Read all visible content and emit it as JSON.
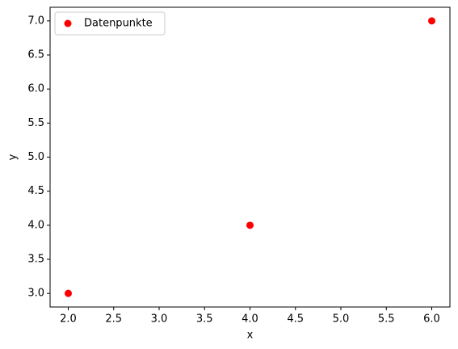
{
  "chart_data": {
    "type": "scatter",
    "x_label": "x",
    "y_label": "y",
    "series": [
      {
        "name": "Datenpunkte",
        "color": "#ff0000",
        "x": [
          2,
          4,
          6
        ],
        "values": [
          3,
          4,
          7
        ]
      }
    ],
    "xlim": [
      1.8,
      6.2
    ],
    "xticks": [
      {
        "value": 2,
        "label": "2.0"
      },
      {
        "value": 2.5,
        "label": "2.5"
      },
      {
        "value": 3,
        "label": "3.0"
      },
      {
        "value": 3.5,
        "label": "3.5"
      },
      {
        "value": 4,
        "label": "4.0"
      },
      {
        "value": 4.5,
        "label": "4.5"
      },
      {
        "value": 5,
        "label": "5.0"
      },
      {
        "value": 5.5,
        "label": "5.5"
      },
      {
        "value": 6,
        "label": "6.0"
      }
    ],
    "ylim": [
      2.8,
      7.2
    ],
    "yticks": [
      {
        "value": 3,
        "label": "3.0"
      },
      {
        "value": 3.5,
        "label": "3.5"
      },
      {
        "value": 4,
        "label": "4.0"
      },
      {
        "value": 4.5,
        "label": "4.5"
      },
      {
        "value": 5,
        "label": "5.0"
      },
      {
        "value": 5.5,
        "label": "5.5"
      },
      {
        "value": 6,
        "label": "6.0"
      },
      {
        "value": 6.5,
        "label": "6.5"
      },
      {
        "value": 7,
        "label": "7.0"
      }
    ],
    "grid": false,
    "legend": "upper left"
  }
}
